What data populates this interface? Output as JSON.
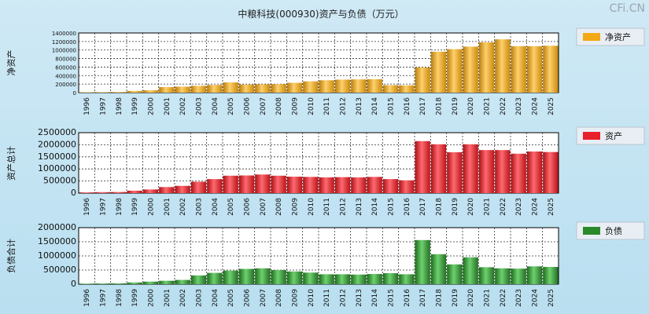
{
  "title": "中粮科技(000930)资产与负债（万元）",
  "watermark": "CFi.CN",
  "chart_data": [
    {
      "type": "bar",
      "ylabel": "净资产",
      "legend": "净资产",
      "color": "#f2a915",
      "categories": [
        "1996",
        "1997",
        "1998",
        "1999",
        "2000",
        "2001",
        "2002",
        "2003",
        "2004",
        "2005",
        "2006",
        "2007",
        "2008",
        "2009",
        "2010",
        "2011",
        "2012",
        "2013",
        "2014",
        "2015",
        "2016",
        "2017",
        "2018",
        "2019",
        "2020",
        "2021",
        "2022",
        "2023",
        "2024",
        "2025"
      ],
      "values": [
        10000,
        12000,
        15000,
        40000,
        55000,
        130000,
        140000,
        160000,
        180000,
        240000,
        190000,
        195000,
        200000,
        230000,
        265000,
        290000,
        305000,
        310000,
        315000,
        175000,
        170000,
        590000,
        960000,
        1020000,
        1080000,
        1180000,
        1250000,
        1090000,
        1090000,
        1100000
      ],
      "yticks": [
        "0",
        "200000",
        "400000",
        "600000",
        "800000",
        "1000000",
        "1200000",
        "1400000"
      ],
      "ylim": [
        0,
        1400000
      ]
    },
    {
      "type": "bar",
      "ylabel": "资产总计",
      "legend": "资产",
      "color": "#e8202a",
      "categories": [
        "1996",
        "1997",
        "1998",
        "1999",
        "2000",
        "2001",
        "2002",
        "2003",
        "2004",
        "2005",
        "2006",
        "2007",
        "2008",
        "2009",
        "2010",
        "2011",
        "2012",
        "2013",
        "2014",
        "2015",
        "2016",
        "2017",
        "2018",
        "2019",
        "2020",
        "2021",
        "2022",
        "2023",
        "2024",
        "2025"
      ],
      "values": [
        30000,
        40000,
        45000,
        100000,
        150000,
        250000,
        300000,
        470000,
        580000,
        720000,
        730000,
        770000,
        720000,
        680000,
        670000,
        650000,
        660000,
        650000,
        670000,
        580000,
        530000,
        2150000,
        2020000,
        1690000,
        2020000,
        1780000,
        1780000,
        1630000,
        1720000,
        1700000
      ],
      "yticks": [
        "0",
        "500000",
        "1000000",
        "1500000",
        "2000000",
        "2500000"
      ],
      "ylim": [
        0,
        2500000
      ]
    },
    {
      "type": "bar",
      "ylabel": "负债合计",
      "legend": "负债",
      "color": "#2a8a2a",
      "categories": [
        "1996",
        "1997",
        "1998",
        "1999",
        "2000",
        "2001",
        "2002",
        "2003",
        "2004",
        "2005",
        "2006",
        "2007",
        "2008",
        "2009",
        "2010",
        "2011",
        "2012",
        "2013",
        "2014",
        "2015",
        "2016",
        "2017",
        "2018",
        "2019",
        "2020",
        "2021",
        "2022",
        "2023",
        "2024",
        "2025"
      ],
      "values": [
        20000,
        25000,
        30000,
        60000,
        90000,
        120000,
        150000,
        310000,
        400000,
        480000,
        540000,
        560000,
        500000,
        450000,
        410000,
        350000,
        350000,
        340000,
        360000,
        390000,
        350000,
        1560000,
        1060000,
        700000,
        950000,
        600000,
        560000,
        550000,
        630000,
        610000
      ],
      "yticks": [
        "0",
        "500000",
        "1000000",
        "1500000",
        "2000000"
      ],
      "ylim": [
        0,
        2000000
      ]
    }
  ]
}
